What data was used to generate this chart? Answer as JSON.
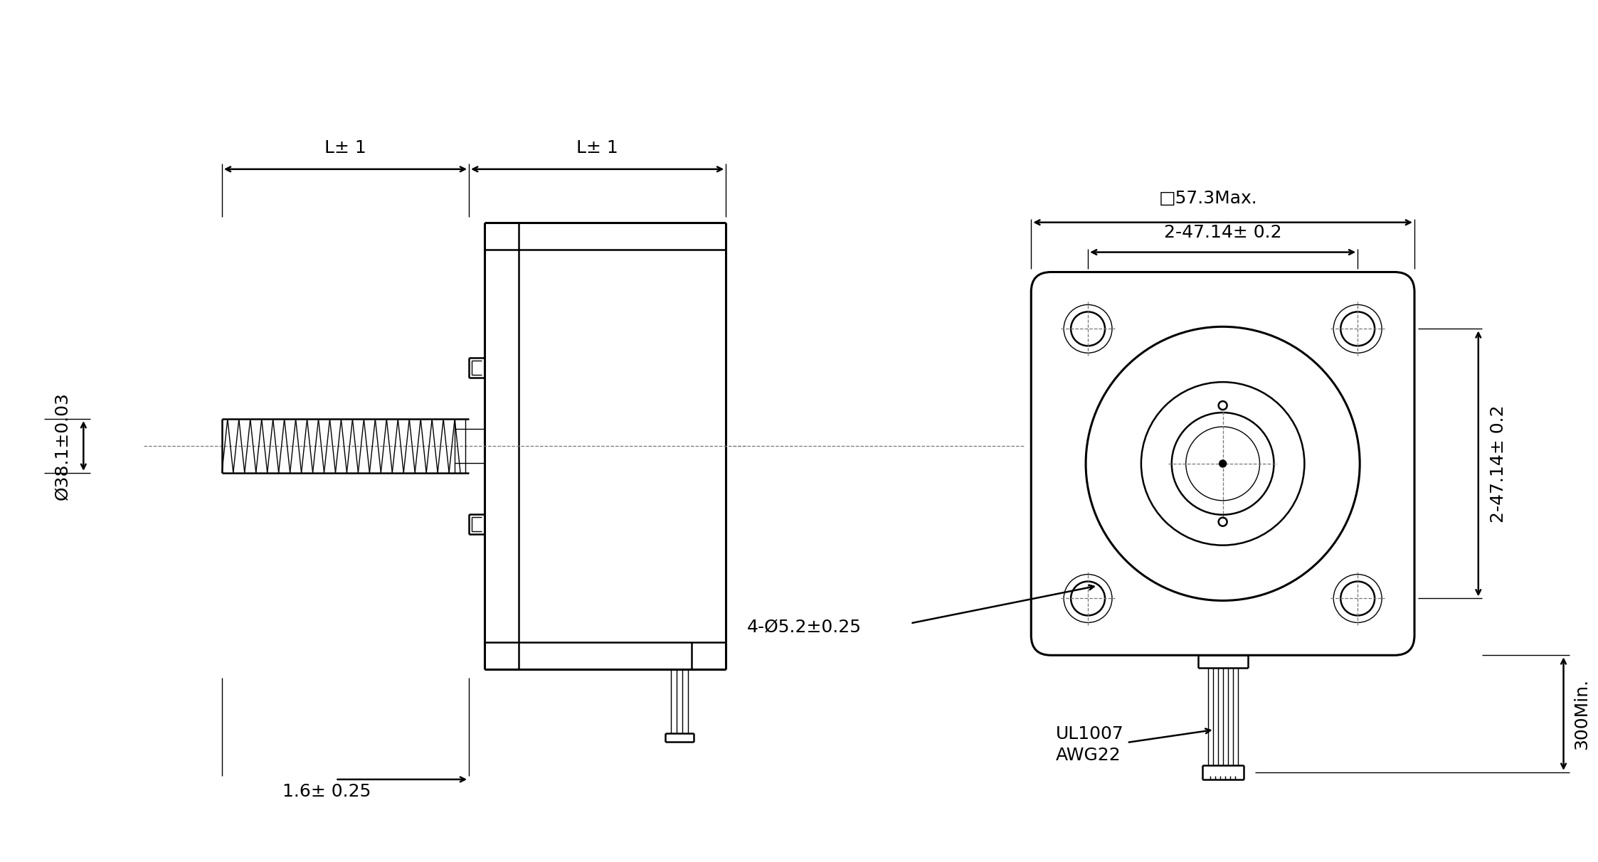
{
  "bg_color": "#ffffff",
  "line_color": "#000000",
  "dim_color": "#000000",
  "font_size": 18,
  "annotations": {
    "L1_label": "L± 1",
    "L2_label": "L± 1",
    "diameter_label": "Ø38.1±0.03",
    "step_label": "1.6± 0.25",
    "square_label": "□57.3Max.",
    "hole_pitch_top": "2-47.14± 0.2",
    "hole_pitch_side": "2-47.14± 0.2",
    "hole_label": "4-Ø5.2±0.25",
    "wire_label1": "UL1007",
    "wire_label2": "AWG22",
    "length_label": "300Min."
  },
  "lw": 1.8,
  "lw_thick": 2.2,
  "lw_thin": 1.0,
  "lw_dash": 0.9
}
